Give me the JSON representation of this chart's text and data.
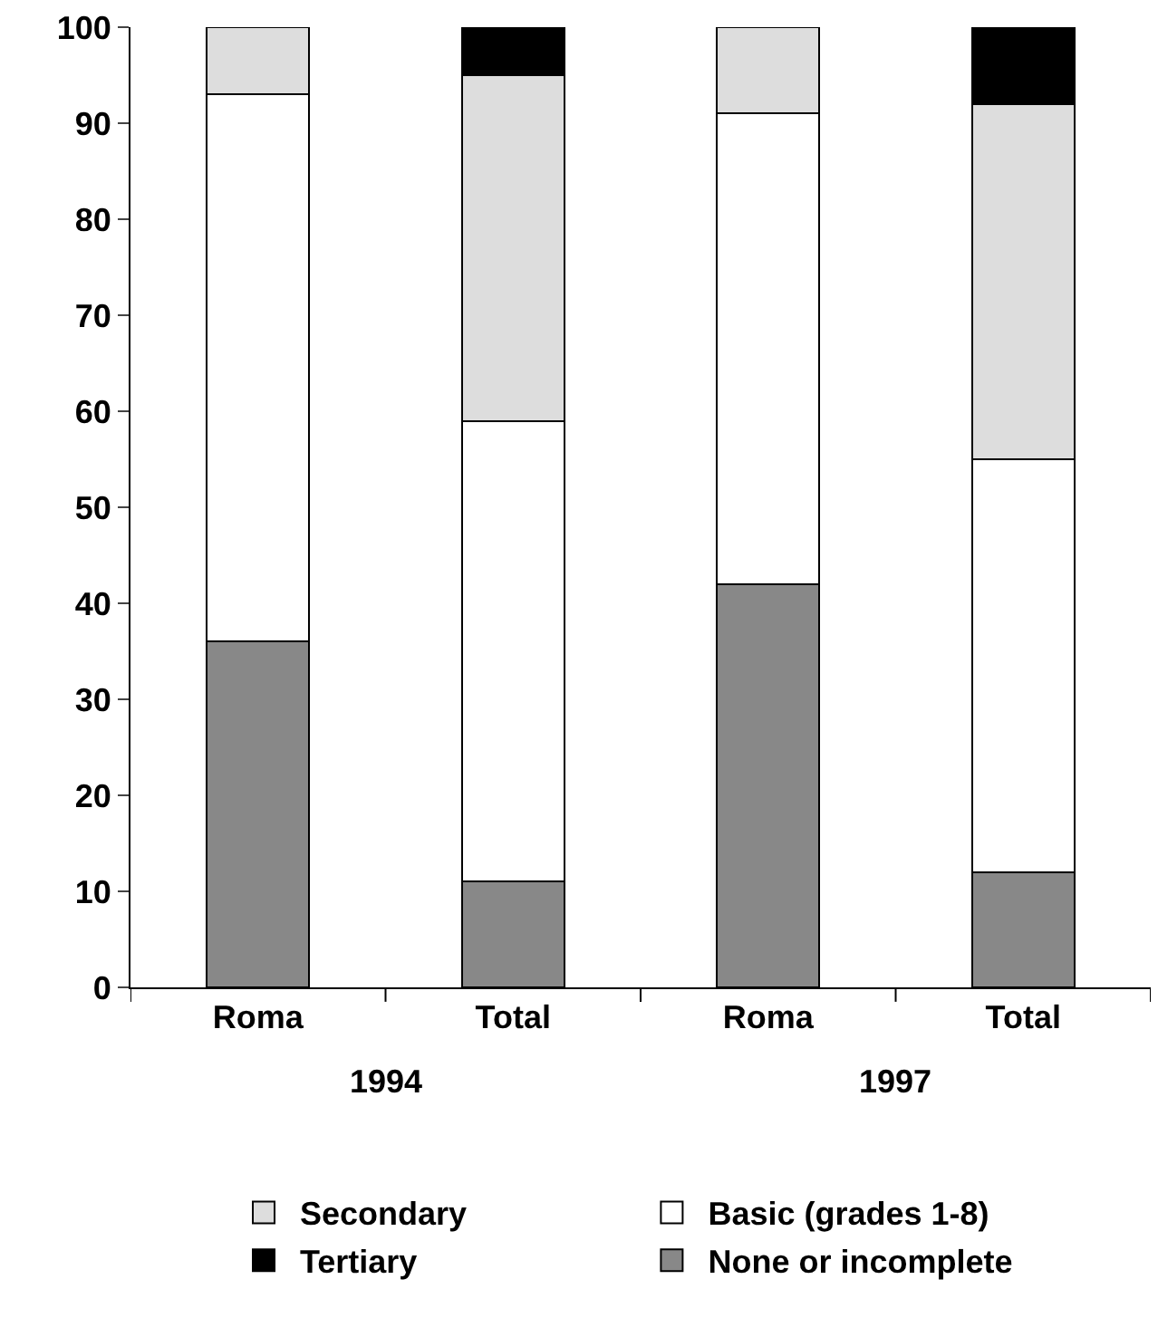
{
  "chart_data": {
    "type": "bar",
    "stacked": true,
    "categories": [
      "Roma",
      "Total",
      "Roma",
      "Total"
    ],
    "series": [
      {
        "name": "None or incomplete",
        "color": "#888888",
        "values": [
          36,
          11,
          42,
          12
        ]
      },
      {
        "name": "Basic (grades 1-8)",
        "color": "#ffffff",
        "values": [
          57,
          48,
          49,
          43
        ]
      },
      {
        "name": "Secondary",
        "color": "#dddddd",
        "values": [
          7,
          36,
          9,
          37
        ]
      },
      {
        "name": "Tertiary",
        "color": "#000000",
        "values": [
          0,
          5,
          0,
          8
        ]
      }
    ],
    "ylim": [
      0,
      100
    ],
    "yticks": [
      0,
      10,
      20,
      30,
      40,
      50,
      60,
      70,
      80,
      90,
      100
    ],
    "grid": false,
    "legend": "bottom",
    "annotations": [
      "1994",
      "1997"
    ]
  }
}
